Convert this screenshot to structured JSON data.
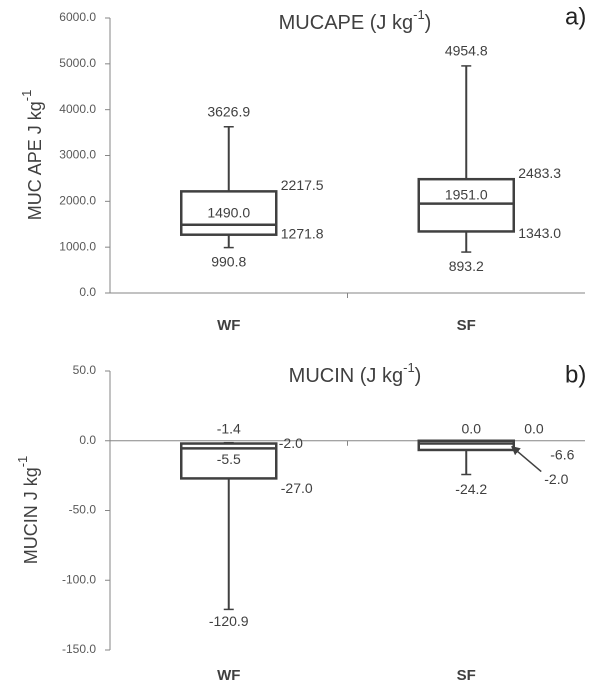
{
  "chart_data": [
    {
      "type": "box",
      "title": {
        "text": "MUCAPE (J kg",
        "superscript": "-1",
        "close": ")"
      },
      "y_label": {
        "text": "MUC APE J kg",
        "superscript": "-1"
      },
      "panel_label": "a)",
      "categories": [
        "WF",
        "SF"
      ],
      "ylim": [
        0,
        6000
      ],
      "yticks": [
        {
          "value": 0,
          "label": "0.0"
        },
        {
          "value": 1000,
          "label": "1000.0"
        },
        {
          "value": 2000,
          "label": "2000.0"
        },
        {
          "value": 3000,
          "label": "3000.0"
        },
        {
          "value": 4000,
          "label": "4000.0"
        },
        {
          "value": 5000,
          "label": "5000.0"
        },
        {
          "value": 6000,
          "label": "6000.0"
        }
      ],
      "boxes": [
        {
          "min": 990.8,
          "q1": 1271.8,
          "median": 1490.0,
          "q3": 2217.5,
          "max": 3626.9,
          "value_labels": {
            "min": "990.8",
            "q1": "1271.8",
            "median": "1490.0",
            "q3": "2217.5",
            "max": "3626.9"
          }
        },
        {
          "min": 893.2,
          "q1": 1343.0,
          "median": 1951.0,
          "q3": 2483.3,
          "max": 4954.8,
          "value_labels": {
            "min": "893.2",
            "q1": "1343.0",
            "median": "1951.0",
            "q3": "2483.3",
            "max": "4954.8"
          }
        }
      ]
    },
    {
      "type": "box",
      "title": {
        "text": "MUCIN (J kg",
        "superscript": "-1",
        "close": ")"
      },
      "y_label": {
        "text": "MUCIN J kg",
        "superscript": "-1"
      },
      "panel_label": "b)",
      "categories": [
        "WF",
        "SF"
      ],
      "ylim": [
        -150,
        50
      ],
      "yticks": [
        {
          "value": -150,
          "label": "-150.0"
        },
        {
          "value": -100,
          "label": "-100.0"
        },
        {
          "value": -50,
          "label": "-50.0"
        },
        {
          "value": 0,
          "label": "0.0"
        },
        {
          "value": 50,
          "label": "50.0"
        }
      ],
      "boxes": [
        {
          "min": -120.9,
          "q1": -27.0,
          "median": -5.5,
          "q3": -2.0,
          "max": -1.4,
          "value_labels": {
            "min": "-120.9",
            "q1": "-27.0",
            "median": "-5.5",
            "q3": "-2.0",
            "max": "-1.4"
          }
        },
        {
          "min": -24.2,
          "q1": -6.6,
          "median": -2.0,
          "q3": 0.0,
          "max": 0.0,
          "value_labels": {
            "min": "-24.2",
            "q1": "-6.6",
            "median": "-2.0",
            "q3": "0.0",
            "max": "0.0"
          }
        }
      ]
    }
  ]
}
